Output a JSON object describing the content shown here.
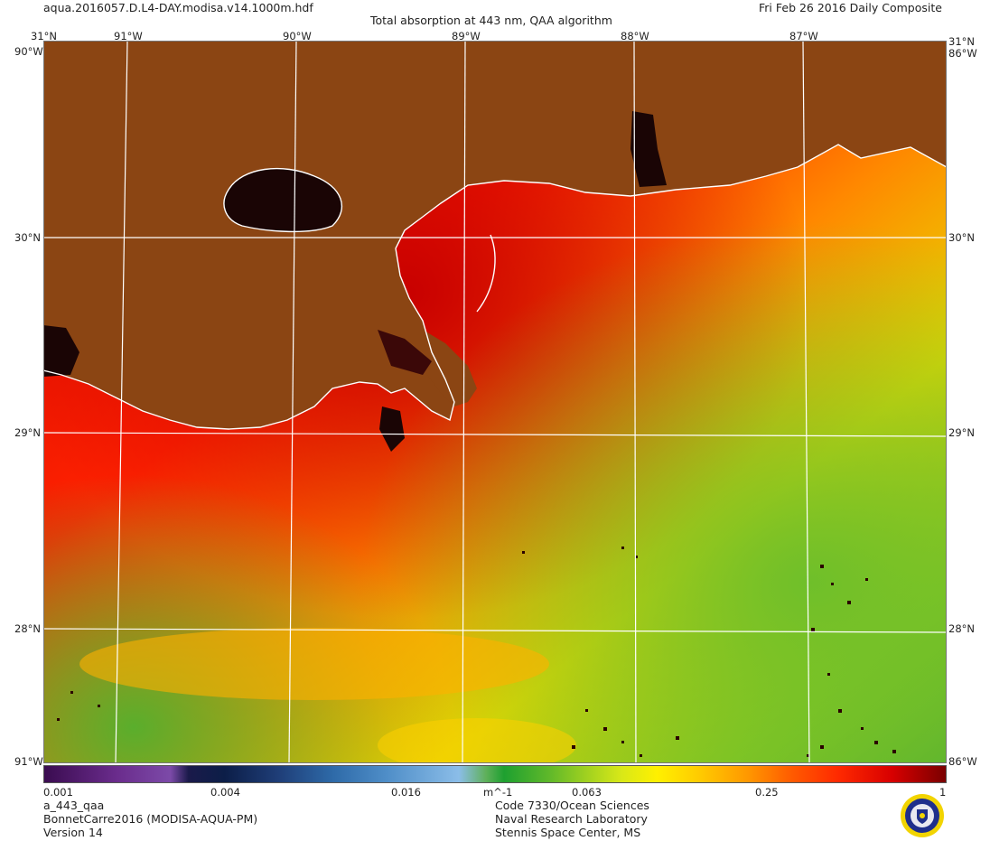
{
  "header": {
    "filename": "aqua.2016057.D.L4-DAY.modisa.v14.1000m.hdf",
    "title": "Total absorption at 443 nm, QAA algorithm",
    "date": "Fri Feb 26 2016 Daily Composite"
  },
  "map": {
    "top_lon_labels": [
      "91°W",
      "90°W",
      "89°W",
      "88°W",
      "87°W"
    ],
    "corner_top": "31°N",
    "lat_labels": [
      "30°N",
      "29°N",
      "28°N"
    ],
    "edge_labels": {
      "top_left": "90°W",
      "top_right": "86°W",
      "bottom_left": "91°W",
      "bottom_right": "86°W"
    },
    "colors": {
      "land": "#8b4513",
      "no_data": "#000000",
      "grid": "#ffffff"
    }
  },
  "colorbar": {
    "ticks": [
      "0.001",
      "0.004",
      "0.016",
      "m^-1",
      "0.063",
      "0.25",
      "1"
    ]
  },
  "footer": {
    "left": [
      "a_443_qaa",
      "BonnetCarre2016 (MODISA-AQUA-PM)",
      "Version 14"
    ],
    "center": [
      "Code 7330/Ocean Sciences",
      "Naval Research Laboratory",
      "Stennis Space Center, MS"
    ]
  }
}
